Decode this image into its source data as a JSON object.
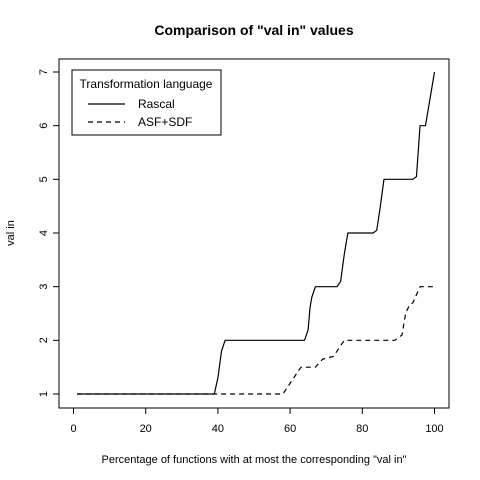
{
  "chart_data": {
    "type": "line",
    "title": "Comparison of \"val in\" values",
    "xlabel": "Percentage of functions with at most the corresponding \"val in\"",
    "ylabel": "val in",
    "xlim": [
      0,
      100
    ],
    "ylim": [
      1,
      7
    ],
    "x_ticks": [
      0,
      20,
      40,
      60,
      80,
      100
    ],
    "y_ticks": [
      1,
      2,
      3,
      4,
      5,
      6,
      7
    ],
    "grid": false,
    "legend": {
      "title": "Transformation language",
      "position": "top-left"
    },
    "series": [
      {
        "name": "Rascal",
        "line_style": "solid",
        "points": [
          [
            1,
            1
          ],
          [
            39,
            1
          ],
          [
            40,
            1.3
          ],
          [
            41,
            1.8
          ],
          [
            42,
            2
          ],
          [
            64,
            2
          ],
          [
            65,
            2.2
          ],
          [
            65.5,
            2.6
          ],
          [
            66,
            2.8
          ],
          [
            67,
            3
          ],
          [
            73,
            3
          ],
          [
            74,
            3.1
          ],
          [
            75,
            3.6
          ],
          [
            76,
            4
          ],
          [
            83,
            4
          ],
          [
            84,
            4.05
          ],
          [
            85,
            4.5
          ],
          [
            86,
            5
          ],
          [
            94,
            5
          ],
          [
            95,
            5.05
          ],
          [
            96,
            6
          ],
          [
            97.5,
            6
          ],
          [
            100,
            7
          ]
        ]
      },
      {
        "name": "ASF+SDF",
        "line_style": "dashed",
        "points": [
          [
            1,
            1
          ],
          [
            58,
            1
          ],
          [
            61,
            1.3
          ],
          [
            63,
            1.5
          ],
          [
            67,
            1.5
          ],
          [
            69,
            1.65
          ],
          [
            72,
            1.7
          ],
          [
            73,
            1.8
          ],
          [
            75,
            2
          ],
          [
            89,
            2
          ],
          [
            91,
            2.1
          ],
          [
            92,
            2.5
          ],
          [
            93,
            2.65
          ],
          [
            94,
            2.7
          ],
          [
            96,
            3
          ],
          [
            100,
            3
          ]
        ]
      }
    ]
  }
}
